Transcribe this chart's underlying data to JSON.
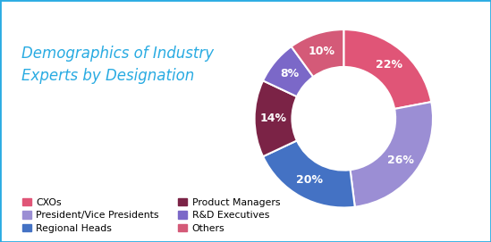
{
  "title_line1": "Demographics of Industry",
  "title_line2": "Experts by Designation",
  "title_color": "#29ABE2",
  "background_color": "#FFFFFF",
  "border_color": "#29ABE2",
  "slices": [
    {
      "label": "CXOs",
      "value": 22,
      "color": "#E05577"
    },
    {
      "label": "President/Vice Presidents",
      "value": 26,
      "color": "#9B8ED4"
    },
    {
      "label": "Regional Heads",
      "value": 20,
      "color": "#4472C4"
    },
    {
      "label": "Product Managers",
      "value": 14,
      "color": "#7B2346"
    },
    {
      "label": "R&D Executives",
      "value": 8,
      "color": "#7B68C8"
    },
    {
      "label": "Others",
      "value": 10,
      "color": "#D45A78"
    }
  ],
  "legend_order": [
    "CXOs",
    "President/Vice Presidents",
    "Regional Heads",
    "Product Managers",
    "R&D Executives",
    "Others"
  ],
  "pct_label_color": "#FFFFFF",
  "pct_fontsize": 9,
  "title_fontsize": 12,
  "donut_width": 0.42
}
